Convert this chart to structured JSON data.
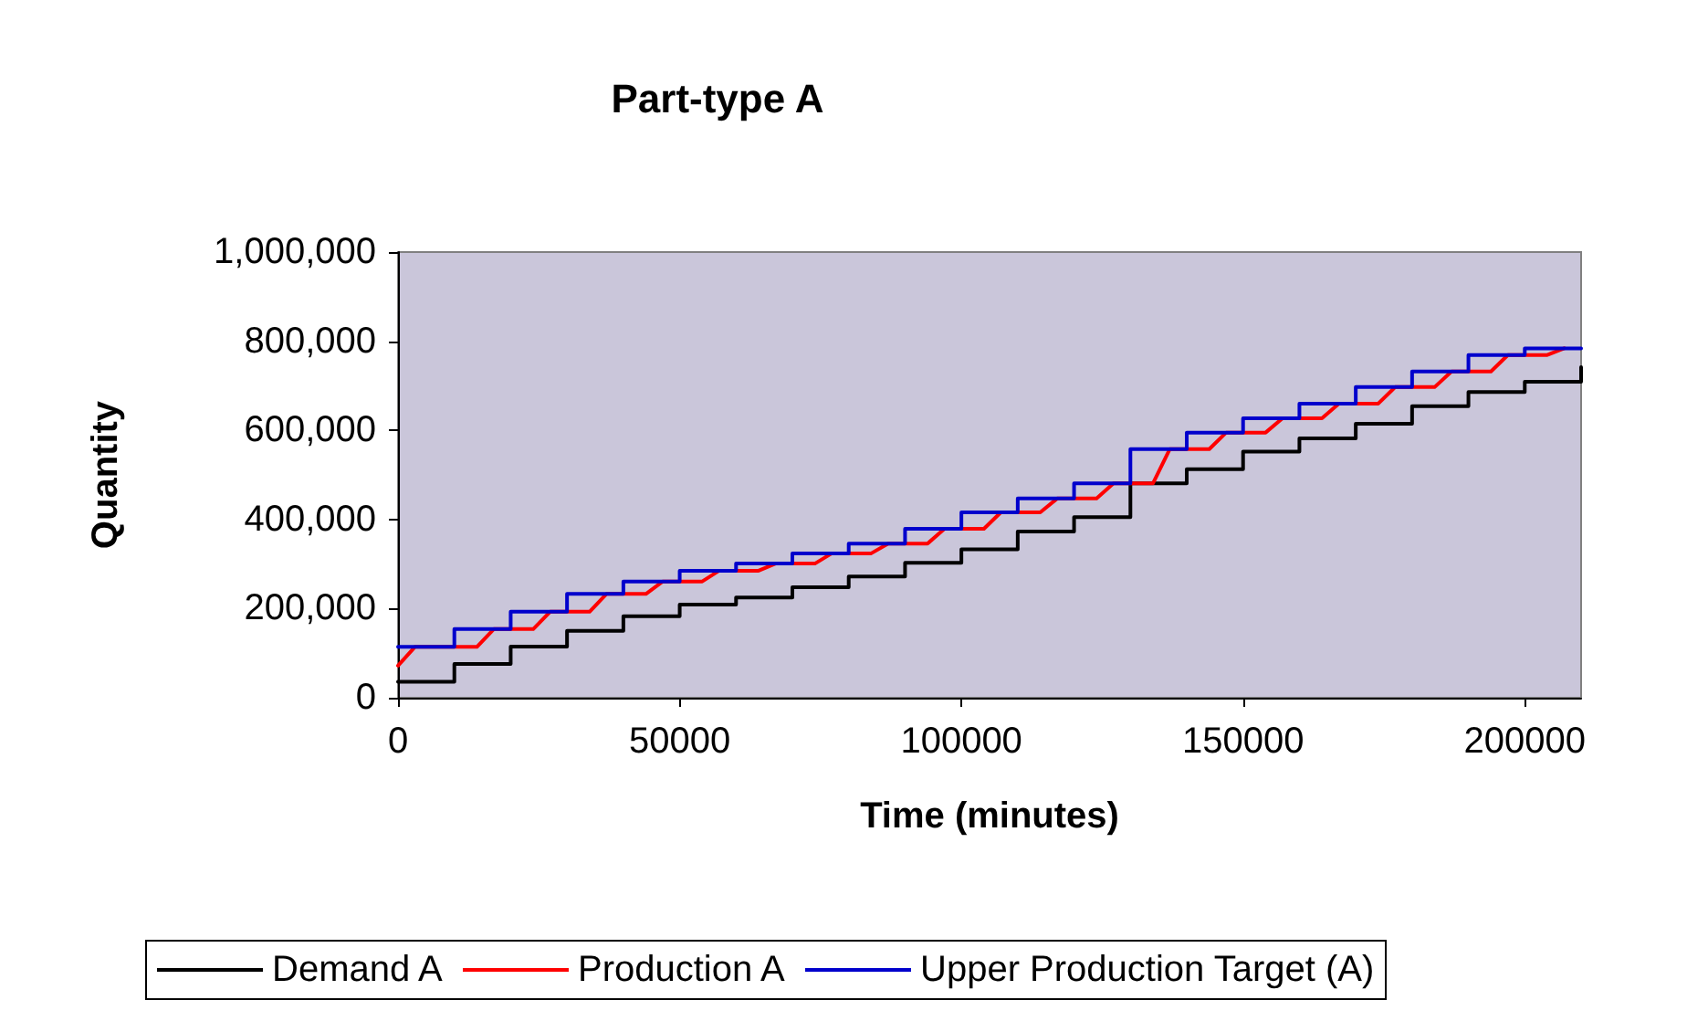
{
  "chart_data": {
    "type": "step",
    "title": "Part-type A",
    "xlabel": "Time (minutes)",
    "ylabel": "Quantity",
    "xlim": [
      0,
      210000
    ],
    "xticks": [
      0,
      50000,
      100000,
      150000,
      200000
    ],
    "ylim": [
      0,
      1000000
    ],
    "yticks": [
      {
        "value": 0,
        "label": "0"
      },
      {
        "value": 200000,
        "label": "200,000"
      },
      {
        "value": 400000,
        "label": "400,000"
      },
      {
        "value": 600000,
        "label": "600,000"
      },
      {
        "value": 800000,
        "label": "800,000"
      },
      {
        "value": 1000000,
        "label": "1,000,000"
      }
    ],
    "grid": false,
    "legend": "bottom",
    "marker": "none",
    "line_style": "solid",
    "series": [
      {
        "name": "Demand A",
        "color": "#000000",
        "x": [
          0,
          10000,
          20000,
          30000,
          40000,
          50000,
          60000,
          70000,
          80000,
          90000,
          100000,
          110000,
          120000,
          130000,
          140000,
          150000,
          160000,
          170000,
          180000,
          190000,
          200000,
          210000
        ],
        "values": [
          36000,
          76000,
          115000,
          150000,
          183000,
          209000,
          225000,
          248000,
          272000,
          303000,
          333000,
          373000,
          405000,
          481000,
          513000,
          552000,
          582000,
          615000,
          654000,
          686000,
          709000,
          742000
        ]
      },
      {
        "name": "Production A",
        "type": "line",
        "color": "#ff0000",
        "x": [
          0,
          3000,
          14000,
          17000,
          24000,
          27000,
          34000,
          37000,
          44000,
          47000,
          54000,
          57000,
          64000,
          67000,
          74000,
          77000,
          84000,
          87000,
          94000,
          97000,
          104000,
          107000,
          114000,
          117000,
          124000,
          127000,
          134000,
          137000,
          144000,
          147000,
          154000,
          157000,
          164000,
          167000,
          174000,
          177000,
          184000,
          187000,
          194000,
          197000,
          204000,
          207000
        ],
        "values": [
          72000,
          114000,
          114000,
          154000,
          154000,
          193000,
          193000,
          233000,
          233000,
          261000,
          261000,
          285000,
          285000,
          301000,
          301000,
          324000,
          324000,
          346000,
          346000,
          379000,
          379000,
          416000,
          416000,
          447000,
          447000,
          481000,
          481000,
          558000,
          558000,
          595000,
          595000,
          627000,
          627000,
          660000,
          660000,
          697000,
          697000,
          732000,
          732000,
          769000,
          769000,
          784000
        ]
      },
      {
        "name": "Upper Production Target (A)",
        "color": "#0000cc",
        "x": [
          0,
          10000,
          20000,
          30000,
          40000,
          50000,
          60000,
          70000,
          80000,
          90000,
          100000,
          110000,
          120000,
          130000,
          140000,
          150000,
          160000,
          170000,
          180000,
          190000,
          200000,
          210000
        ],
        "values": [
          114000,
          154000,
          193000,
          233000,
          261000,
          285000,
          301000,
          324000,
          346000,
          379000,
          416000,
          447000,
          481000,
          558000,
          595000,
          627000,
          660000,
          697000,
          732000,
          769000,
          784000,
          784000
        ]
      }
    ]
  }
}
